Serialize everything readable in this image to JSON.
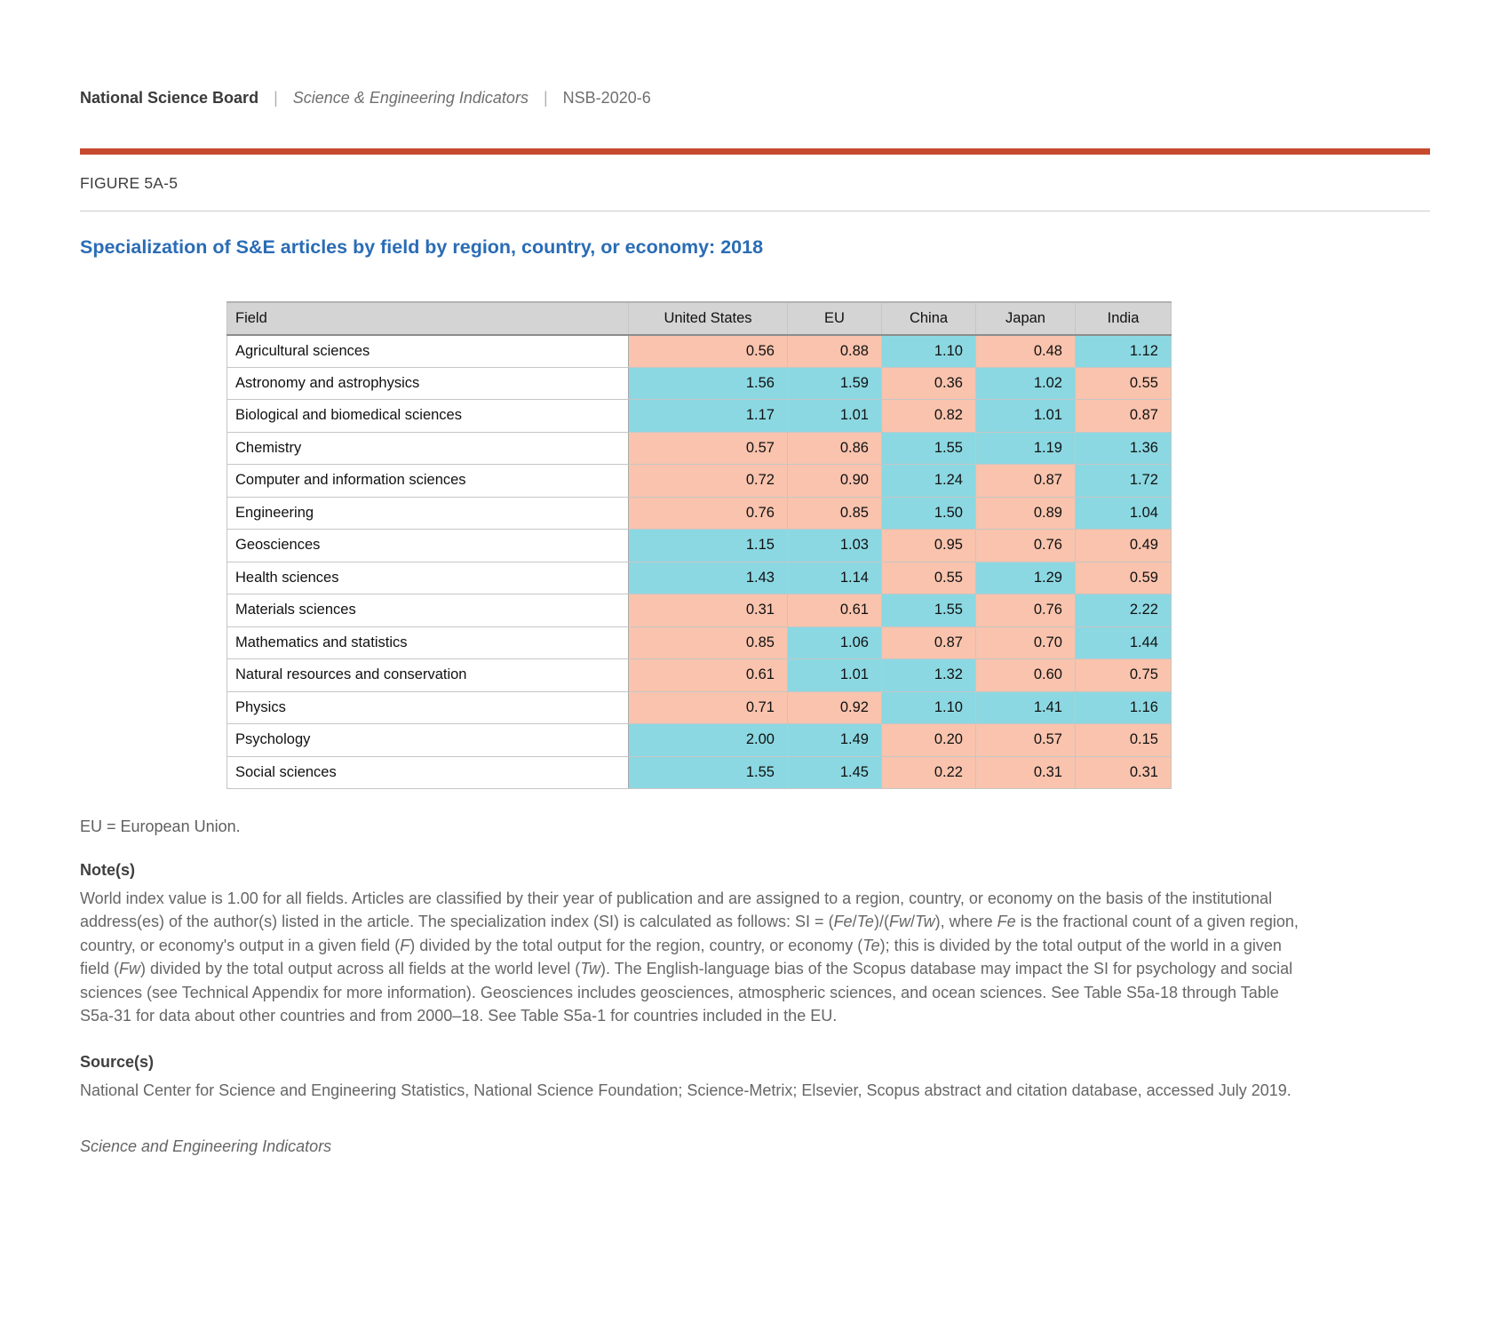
{
  "header": {
    "organization": "National Science Board",
    "separator": "|",
    "publication": "Science & Engineering Indicators",
    "report_id": "NSB-2020-6"
  },
  "figure": {
    "label": "FIGURE 5A-5",
    "title": "Specialization of S&E articles by field by region, country, or economy: 2018"
  },
  "chart_data": {
    "type": "heatmap",
    "title": "Specialization of S&E articles by field by region, country, or economy: 2018",
    "rows_label": "Field",
    "categories": [
      "Agricultural sciences",
      "Astronomy and astrophysics",
      "Biological and biomedical sciences",
      "Chemistry",
      "Computer and information sciences",
      "Engineering",
      "Geosciences",
      "Health sciences",
      "Materials sciences",
      "Mathematics and statistics",
      "Natural resources and conservation",
      "Physics",
      "Psychology",
      "Social sciences"
    ],
    "series": [
      {
        "name": "United States",
        "values": [
          0.56,
          1.56,
          1.17,
          0.57,
          0.72,
          0.76,
          1.15,
          1.43,
          0.31,
          0.85,
          0.61,
          0.71,
          2.0,
          1.55
        ]
      },
      {
        "name": "EU",
        "values": [
          0.88,
          1.59,
          1.01,
          0.86,
          0.9,
          0.85,
          1.03,
          1.14,
          0.61,
          1.06,
          1.01,
          0.92,
          1.49,
          1.45
        ]
      },
      {
        "name": "China",
        "values": [
          1.1,
          0.36,
          0.82,
          1.55,
          1.24,
          1.5,
          0.95,
          0.55,
          1.55,
          0.87,
          1.32,
          1.1,
          0.2,
          0.22
        ]
      },
      {
        "name": "Japan",
        "values": [
          0.48,
          1.02,
          1.01,
          1.19,
          0.87,
          0.89,
          0.76,
          1.29,
          0.76,
          0.7,
          0.6,
          1.41,
          0.57,
          0.31
        ]
      },
      {
        "name": "India",
        "values": [
          1.12,
          0.55,
          0.87,
          1.36,
          1.72,
          1.04,
          0.49,
          0.59,
          2.22,
          1.44,
          0.75,
          1.16,
          0.15,
          0.31
        ]
      }
    ],
    "world_index_value": 1.0,
    "value_format": "0.00",
    "color_rule": "cell >= 1.00 uses above-world color, cell < 1.00 uses below-world color",
    "legend_position": "none",
    "grid": true
  },
  "colors": {
    "accent_rule": "#c64a2e",
    "title": "#2a6cb5",
    "table_header_bg": "#d4d4d4",
    "cell_above_world": "#8bd8e2",
    "cell_below_world": "#f9c3ad"
  },
  "notes": {
    "abbreviation": "EU = European Union.",
    "notes_heading": "Note(s)",
    "note_segments": [
      {
        "t": "World index value is 1.00 for all fields. Articles are classified by their year of publication and are assigned to a region, country, or economy on the basis of the institutional address(es) of the author(s) listed in the article. The specialization index (SI) is calculated as follows: SI = ("
      },
      {
        "t": "Fe",
        "i": true
      },
      {
        "t": "/"
      },
      {
        "t": "Te",
        "i": true
      },
      {
        "t": ")/("
      },
      {
        "t": "Fw",
        "i": true
      },
      {
        "t": "/"
      },
      {
        "t": "Tw",
        "i": true
      },
      {
        "t": "), where "
      },
      {
        "t": "Fe",
        "i": true
      },
      {
        "t": " is the fractional count of a given region, country, or economy's output in a given field ("
      },
      {
        "t": "F",
        "i": true
      },
      {
        "t": ") divided by the total output for the region, country, or economy ("
      },
      {
        "t": "Te",
        "i": true
      },
      {
        "t": "); this is divided by the total output of the world in a given field ("
      },
      {
        "t": "Fw",
        "i": true
      },
      {
        "t": ") divided by the total output across all fields at the world level ("
      },
      {
        "t": "Tw",
        "i": true
      },
      {
        "t": "). The English-language bias of the Scopus database may impact the SI for psychology and social sciences (see Technical Appendix for more information). Geosciences includes geosciences, atmospheric sciences, and ocean sciences. See Table S5a-18 through Table S5a-31 for data about other countries and from 2000–18. See Table S5a-1 for countries included in the EU."
      }
    ],
    "sources_heading": "Source(s)",
    "source_text": "National Center for Science and Engineering Statistics, National Science Foundation; Science-Metrix; Elsevier, Scopus abstract and citation database, accessed July 2019.",
    "footer": "Science and Engineering Indicators"
  }
}
